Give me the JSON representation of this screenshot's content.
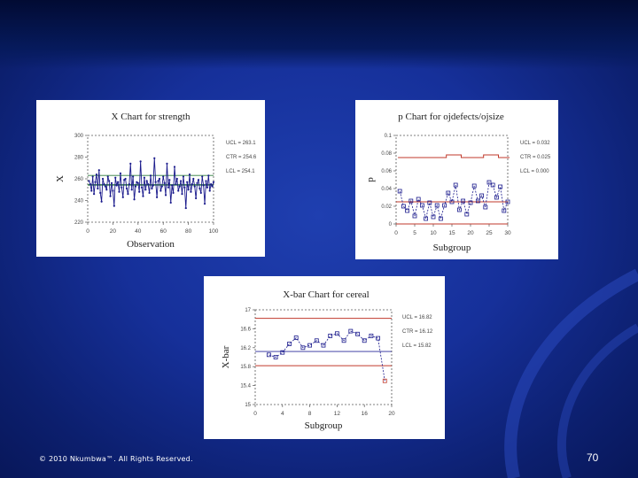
{
  "theme": {
    "background": "#1a35a6",
    "panel": "#ffffff",
    "line_blue": "#1a1a8c",
    "limit_red": "#c0392b"
  },
  "footer": {
    "copyright": "© 2010 Nkumbwa™.  All Rights Reserved.",
    "page_number": "70"
  },
  "chart_data": [
    {
      "type": "line",
      "title": "X Chart for strength",
      "xlabel": "Observation",
      "ylabel": "X",
      "xlim": [
        0,
        100
      ],
      "ylim": [
        220,
        300
      ],
      "x_ticks": [
        "0",
        "20",
        "40",
        "60",
        "80",
        "100"
      ],
      "y_ticks": [
        "300",
        "280",
        "260",
        "240",
        "220"
      ],
      "limits": {
        "ucl": 263.1,
        "ctr": 254.6,
        "lcl": 254.1
      },
      "limit_labels": [
        "UCL = 263.1",
        "CTR = 254.6",
        "LCL = 254.1"
      ],
      "values": [
        258,
        255,
        249,
        262,
        246,
        257,
        264,
        251,
        268,
        247,
        239,
        260,
        255,
        253,
        250,
        262,
        258,
        244,
        256,
        249,
        235,
        261,
        254,
        257,
        248,
        265,
        252,
        243,
        259,
        260,
        251,
        246,
        255,
        274,
        250,
        262,
        241,
        253,
        257,
        256,
        248,
        276,
        252,
        244,
        261,
        250,
        258,
        255,
        247,
        263,
        251,
        254,
        279,
        257,
        243,
        258,
        260,
        249,
        253,
        262,
        256,
        245,
        274,
        252,
        259,
        238,
        254,
        247,
        271,
        255,
        260,
        249,
        253,
        258,
        246,
        262,
        252,
        233,
        257,
        250,
        264,
        248,
        255,
        260,
        253,
        242,
        256,
        259,
        251,
        247,
        262,
        254,
        237,
        258,
        252,
        263,
        249,
        255,
        253,
        257
      ]
    },
    {
      "type": "line",
      "title": "p Chart for ojdefects/ojsize",
      "xlabel": "Subgroup",
      "ylabel": "p",
      "xlim": [
        0,
        30
      ],
      "ylim": [
        0,
        0.1
      ],
      "x_ticks": [
        "0",
        "5",
        "10",
        "15",
        "20",
        "25",
        "30"
      ],
      "y_ticks": [
        "0.1",
        "0.08",
        "0.06",
        "0.04",
        "0.02",
        "0"
      ],
      "limits": {
        "ucl": 0.032,
        "ctr": 0.025,
        "lcl": 0.0
      },
      "limit_labels": [
        "UCL = 0.032",
        "CTR = 0.025",
        "LCL = 0.000"
      ],
      "ucl_steps": [
        0.075,
        0.075,
        0.075,
        0.075,
        0.075,
        0.075,
        0.075,
        0.075,
        0.075,
        0.075,
        0.075,
        0.075,
        0.075,
        0.078,
        0.078,
        0.078,
        0.078,
        0.075,
        0.075,
        0.075,
        0.075,
        0.075,
        0.075,
        0.078,
        0.078,
        0.078,
        0.078,
        0.075,
        0.075,
        0.075
      ],
      "values": [
        0.037,
        0.02,
        0.015,
        0.026,
        0.009,
        0.028,
        0.021,
        0.006,
        0.024,
        0.008,
        0.021,
        0.006,
        0.021,
        0.035,
        0.025,
        0.044,
        0.016,
        0.026,
        0.011,
        0.024,
        0.043,
        0.026,
        0.032,
        0.019,
        0.047,
        0.044,
        0.03,
        0.042,
        0.015,
        0.025
      ]
    },
    {
      "type": "line",
      "title": "X-bar Chart for cereal",
      "xlabel": "Subgroup",
      "ylabel": "X-bar",
      "xlim": [
        0,
        20
      ],
      "ylim": [
        15,
        17
      ],
      "x_ticks": [
        "0",
        "4",
        "8",
        "12",
        "16",
        "20"
      ],
      "y_ticks": [
        "17",
        "16.6",
        "16.2",
        "15.8",
        "15.4",
        "15"
      ],
      "limits": {
        "ucl": 16.82,
        "ctr": 16.12,
        "lcl": 15.82
      },
      "limit_labels": [
        "UCL = 16.82",
        "CTR = 16.12",
        "LCL = 15.82"
      ],
      "values": [
        null,
        16.05,
        16.0,
        16.1,
        16.28,
        16.41,
        16.2,
        16.25,
        16.35,
        16.25,
        16.45,
        16.5,
        16.35,
        16.55,
        16.49,
        16.35,
        16.45,
        16.4,
        15.5,
        null
      ]
    }
  ]
}
